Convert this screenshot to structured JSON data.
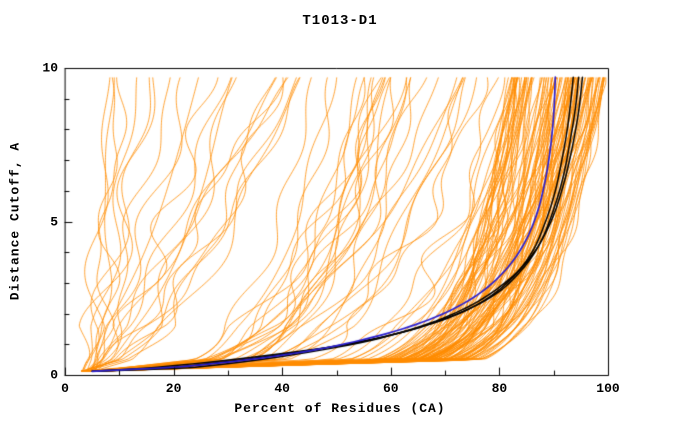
{
  "chart_data": {
    "type": "line",
    "title": "T1013-D1",
    "xlabel": "Percent of Residues (CA)",
    "ylabel": "Distance Cutoff, A",
    "xlim": [
      0,
      100
    ],
    "ylim": [
      0,
      10
    ],
    "x_ticks": [
      0,
      20,
      40,
      60,
      80,
      100
    ],
    "y_ticks": [
      0,
      5,
      10
    ],
    "x_minor_step": 10,
    "y_minor_step": 1,
    "grid": false,
    "legend": "none",
    "seed": 20130,
    "colors": {
      "models": "#ff8c00",
      "best_black": "#000000",
      "reference_blue": "#2a1fd0",
      "axis": "#000000",
      "background": "#ffffff"
    },
    "model_curve_groups": [
      {
        "name": "good-models",
        "count": 110,
        "start_x_range": [
          3,
          7
        ],
        "end_x_range": [
          82,
          100
        ],
        "shape_range": [
          6,
          12
        ],
        "wobble_range": [
          0.4,
          2.2
        ]
      },
      {
        "name": "mediocre-models",
        "count": 30,
        "start_x_range": [
          3,
          7
        ],
        "end_x_range": [
          45,
          82
        ],
        "shape_range": [
          2.5,
          6
        ],
        "wobble_range": [
          1.2,
          3.2
        ]
      },
      {
        "name": "poor-models",
        "count": 22,
        "start_x_range": [
          3,
          6
        ],
        "end_x_range": [
          8,
          45
        ],
        "shape_range": [
          0.9,
          2.2
        ],
        "wobble_range": [
          1.2,
          3.5
        ]
      }
    ],
    "highlight_curves": [
      {
        "name": "best-model-black-1",
        "color_key": "best_black",
        "points": [
          [
            5,
            0.12
          ],
          [
            17,
            0.25
          ],
          [
            40,
            0.7
          ],
          [
            55,
            1.1
          ],
          [
            68,
            1.7
          ],
          [
            76,
            2.3
          ],
          [
            82,
            3.1
          ],
          [
            86,
            4.0
          ],
          [
            88.5,
            5.0
          ],
          [
            90.3,
            6.0
          ],
          [
            91.5,
            7.0
          ],
          [
            92.5,
            8.0
          ],
          [
            93.2,
            9.0
          ],
          [
            93.6,
            9.7
          ]
        ]
      },
      {
        "name": "best-model-black-2",
        "color_key": "best_black",
        "points": [
          [
            5,
            0.12
          ],
          [
            20,
            0.25
          ],
          [
            45,
            0.8
          ],
          [
            60,
            1.3
          ],
          [
            71,
            1.9
          ],
          [
            79,
            2.6
          ],
          [
            84,
            3.4
          ],
          [
            87.5,
            4.3
          ],
          [
            90,
            5.4
          ],
          [
            91.8,
            6.5
          ],
          [
            93,
            7.6
          ],
          [
            94,
            8.7
          ],
          [
            94.6,
            9.7
          ]
        ]
      },
      {
        "name": "best-model-black-3",
        "color_key": "best_black",
        "points": [
          [
            6,
            0.12
          ],
          [
            24,
            0.25
          ],
          [
            50,
            0.9
          ],
          [
            64,
            1.5
          ],
          [
            74,
            2.2
          ],
          [
            81,
            3.0
          ],
          [
            86,
            3.9
          ],
          [
            89.5,
            5.0
          ],
          [
            91.8,
            6.2
          ],
          [
            93.4,
            7.4
          ],
          [
            94.6,
            8.6
          ],
          [
            95.3,
            9.7
          ]
        ]
      },
      {
        "name": "reference-blue",
        "color_key": "reference_blue",
        "points": [
          [
            5,
            0.12
          ],
          [
            22,
            0.28
          ],
          [
            42,
            0.7
          ],
          [
            56,
            1.2
          ],
          [
            67,
            1.8
          ],
          [
            75,
            2.5
          ],
          [
            80.5,
            3.3
          ],
          [
            84.3,
            4.2
          ],
          [
            86.8,
            5.2
          ],
          [
            88.4,
            6.3
          ],
          [
            89.4,
            7.4
          ],
          [
            90,
            8.5
          ],
          [
            90.3,
            9.7
          ]
        ]
      }
    ]
  }
}
